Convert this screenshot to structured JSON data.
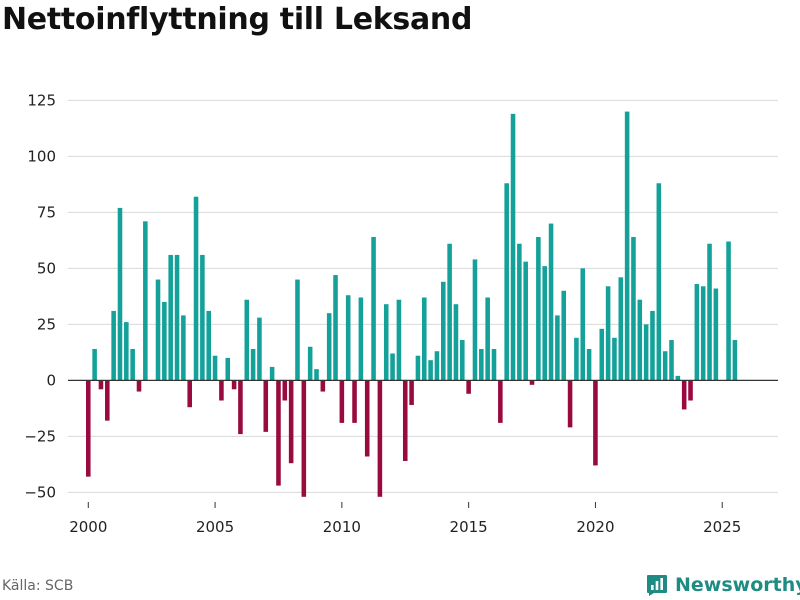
{
  "chart_data": {
    "type": "bar",
    "title": "Nettoinflyttning till Leksand",
    "xlabel": "",
    "ylabel": "",
    "ylim": [
      -57,
      135
    ],
    "xlim": [
      1999.2,
      2027.2
    ],
    "yticks": [
      -50,
      -25,
      0,
      25,
      50,
      75,
      100,
      125
    ],
    "xticks": [
      2000,
      2005,
      2010,
      2015,
      2020,
      2025
    ],
    "positive_color": "#13a19a",
    "negative_color": "#990a3e",
    "start_year": 2000,
    "periods_per_year": 4,
    "values": [
      -43,
      14,
      -4,
      -18,
      31,
      77,
      26,
      14,
      -5,
      71,
      0,
      45,
      35,
      56,
      56,
      29,
      -12,
      82,
      56,
      31,
      11,
      -9,
      10,
      -4,
      -24,
      36,
      14,
      28,
      -23,
      6,
      -47,
      -9,
      -37,
      45,
      -52,
      15,
      5,
      -5,
      30,
      47,
      -19,
      38,
      -19,
      37,
      -34,
      64,
      -52,
      34,
      12,
      36,
      -36,
      -11,
      11,
      37,
      9,
      13,
      44,
      61,
      34,
      18,
      -6,
      54,
      14,
      37,
      14,
      -19,
      88,
      119,
      61,
      53,
      -2,
      64,
      51,
      70,
      29,
      40,
      -21,
      19,
      50,
      14,
      -38,
      23,
      42,
      19,
      46,
      120,
      64,
      36,
      25,
      31,
      88,
      13,
      18,
      2,
      -13,
      -9,
      43,
      42,
      61,
      41,
      0,
      62,
      18
    ]
  },
  "footer": {
    "source": "Källa: SCB",
    "brand": "Newsworthy"
  },
  "colors": {
    "brand": "#1f8c83",
    "grid": "#d9d9d9",
    "zero_line": "#333333"
  }
}
